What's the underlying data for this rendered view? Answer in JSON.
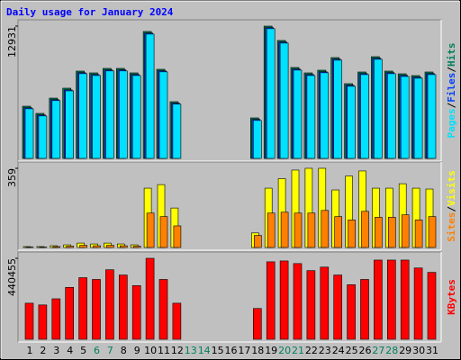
{
  "chart_data": {
    "type": "bar",
    "title": "Daily usage for January 2024",
    "categories": [
      "1",
      "2",
      "3",
      "4",
      "5",
      "6",
      "7",
      "8",
      "9",
      "10",
      "11",
      "12",
      "13",
      "14",
      "15",
      "16",
      "17",
      "18",
      "19",
      "20",
      "21",
      "22",
      "23",
      "24",
      "25",
      "26",
      "27",
      "28",
      "29",
      "30",
      "31"
    ],
    "category_colors": [
      "#000000",
      "#000000",
      "#000000",
      "#000000",
      "#000000",
      "#00805c",
      "#00805c",
      "#000000",
      "#000000",
      "#000000",
      "#000000",
      "#000000",
      "#00805c",
      "#00805c",
      "#000000",
      "#000000",
      "#000000",
      "#000000",
      "#000000",
      "#00805c",
      "#00805c",
      "#000000",
      "#000000",
      "#000000",
      "#000000",
      "#000000",
      "#00805c",
      "#00805c",
      "#000000",
      "#000000",
      "#000000"
    ],
    "legend_separator": "/",
    "panels": [
      {
        "ylim": [
          0,
          12931
        ],
        "yticks": [
          12931
        ],
        "series": [
          {
            "name": "Hits",
            "color": "#00805c",
            "values": [
              5102,
              4398,
              5894,
              6862,
              8533,
              8357,
              8797,
              8797,
              8357,
              12404,
              8709,
              5542,
              0,
              0,
              0,
              0,
              0,
              3959,
              12931,
              11524,
              8885,
              8357,
              8621,
              9853,
              7302,
              8445,
              9941,
              8533,
              8269,
              8093,
              8445
            ]
          },
          {
            "name": "Files",
            "color": "#0040ff",
            "values": [
              4950,
              4250,
              5750,
              6700,
              8380,
              8200,
              8650,
              8650,
              8200,
              12250,
              8560,
              5400,
              0,
              0,
              0,
              0,
              0,
              3810,
              12780,
              11370,
              8730,
              8200,
              8470,
              9700,
              7150,
              8290,
              9790,
              8380,
              8110,
              7940,
              8290
            ]
          },
          {
            "name": "Pages",
            "color": "#00e0ff",
            "values": [
              4850,
              4150,
              5650,
              6600,
              8280,
              8100,
              8550,
              8550,
              8100,
              12150,
              8460,
              5300,
              0,
              0,
              0,
              0,
              0,
              3710,
              12680,
              11270,
              8630,
              8100,
              8370,
              9600,
              7050,
              8190,
              9690,
              8280,
              8010,
              7840,
              8190
            ]
          }
        ]
      },
      {
        "ylim": [
          0,
          359
        ],
        "yticks": [
          359
        ],
        "series": [
          {
            "name": "Visits",
            "color": "#ffff00",
            "values": [
              4,
              4,
              8,
              12,
              20,
              16,
              20,
              16,
              12,
              269,
              285,
              179,
              0,
              0,
              0,
              0,
              0,
              66,
              269,
              312,
              351,
              359,
              359,
              261,
              324,
              347,
              269,
              269,
              289,
              269,
              265
            ]
          },
          {
            "name": "Sites",
            "color": "#ff8000",
            "values": [
              2,
              2,
              4,
              6,
              10,
              8,
              10,
              8,
              6,
              156,
              140,
              98,
              0,
              0,
              0,
              0,
              0,
              55,
              156,
              160,
              156,
              156,
              168,
              140,
              125,
              164,
              137,
              137,
              148,
              125,
              140
            ]
          }
        ]
      },
      {
        "ylim": [
          0,
          440455
        ],
        "yticks": [
          440455
        ],
        "series": [
          {
            "name": "KBytes",
            "color": "#ff0000",
            "values": [
              196282,
              186704,
              220212,
              282450,
              335114,
              325539,
              378199,
              349478,
              292025,
              440455,
              325539,
              196282,
              0,
              0,
              0,
              0,
              0,
              167557,
              421304,
              426092,
              411730,
              373412,
              392561,
              349478,
              296812,
              325539,
              430858,
              430858,
              430858,
              387774,
              363840
            ]
          }
        ]
      }
    ]
  }
}
